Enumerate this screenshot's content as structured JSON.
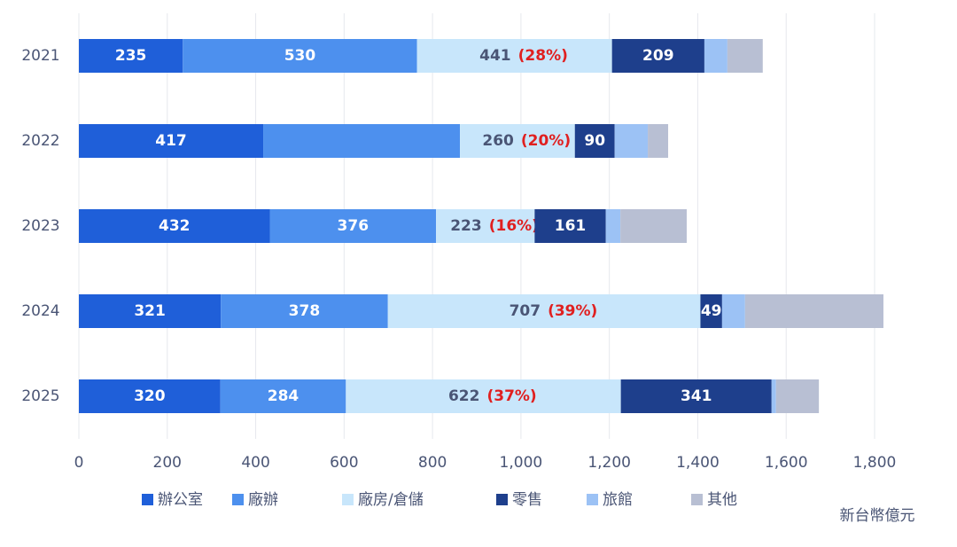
{
  "chart_data": {
    "type": "stacked-bar-horizontal",
    "categories": [
      "2021",
      "2022",
      "2023",
      "2024",
      "2025"
    ],
    "series": [
      {
        "name": "辦公室",
        "color": "#1f5fd9",
        "label_color": "#ffffff",
        "values": [
          235,
          417,
          432,
          321,
          320
        ],
        "value_labels": [
          "235",
          "417",
          "432",
          "321",
          "320"
        ]
      },
      {
        "name": "廠辦",
        "color": "#4d90ee",
        "label_color": "#ffffff",
        "values": [
          530,
          445,
          376,
          378,
          284
        ],
        "value_labels": [
          "530",
          null,
          "376",
          "378",
          "284"
        ]
      },
      {
        "name": "廠房/倉儲",
        "color": "#c8e6fb",
        "label_color": "#4a5575",
        "values": [
          441,
          260,
          223,
          707,
          622
        ],
        "value_labels": [
          "441",
          "260",
          "223",
          "707",
          "622"
        ],
        "shares": [
          28,
          20,
          16,
          39,
          37
        ],
        "share_labels": [
          "(28%)",
          "(20%)",
          "(16%)",
          "(39%)",
          "(37%)"
        ],
        "share_color": "#e02020"
      },
      {
        "name": "零售",
        "color": "#1e3f8c",
        "label_color": "#ffffff",
        "values": [
          209,
          90,
          161,
          49,
          341
        ],
        "value_labels": [
          "209",
          "90",
          "161",
          "49",
          "341"
        ]
      },
      {
        "name": "旅館",
        "color": "#9cc2f5",
        "label_color": "#ffffff",
        "values": [
          52,
          75,
          33,
          52,
          10
        ],
        "value_labels": [
          null,
          null,
          null,
          null,
          null
        ]
      },
      {
        "name": "其他",
        "color": "#b8bfd3",
        "label_color": "#ffffff",
        "values": [
          80,
          46,
          150,
          313,
          97
        ],
        "value_labels": [
          null,
          null,
          null,
          null,
          null
        ]
      }
    ],
    "xlim": [
      0,
      1800
    ],
    "xticks": [
      0,
      200,
      400,
      600,
      800,
      {
        "value": 1000,
        "label": "1,000"
      },
      {
        "value": 1200,
        "label": "1,200"
      },
      {
        "value": 1400,
        "label": "1,400"
      },
      {
        "value": 1600,
        "label": "1,600"
      },
      {
        "value": 1800,
        "label": "1,800"
      }
    ],
    "grid": true,
    "unit": "新台幣億元"
  }
}
